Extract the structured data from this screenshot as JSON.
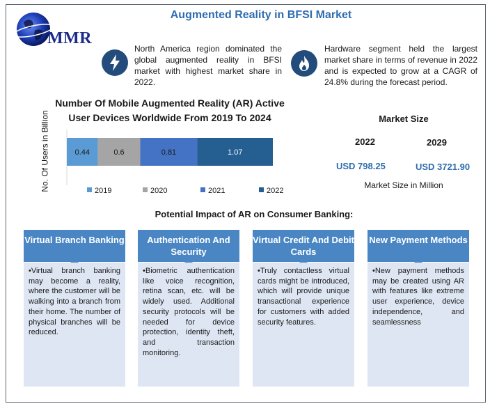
{
  "logo": {
    "text": "MMR",
    "icon": "globe-icon"
  },
  "title": "Augmented Reality in BFSI Market",
  "highlights": [
    {
      "icon": "lightning-icon",
      "text": "North America region dominated the global augmented reality in BFSI market with highest market share in 2022."
    },
    {
      "icon": "flame-icon",
      "text": "Hardware segment held the largest market share in terms of revenue in 2022 and is expected to grow at a CAGR of 24.8% during the forecast period."
    }
  ],
  "chart_data": {
    "type": "bar",
    "orientation": "horizontal-stacked",
    "title": "Number Of Mobile Augmented Reality (AR) Active User Devices Worldwide From 2019 To 2024",
    "ylabel": "No. Of Users in Billion",
    "xlabel": "",
    "series": [
      {
        "name": "2019",
        "values": [
          0.44
        ],
        "label": "0.44",
        "color": "#5b9bd5"
      },
      {
        "name": "2020",
        "values": [
          0.6
        ],
        "label": "0.6",
        "color": "#a5a5a5"
      },
      {
        "name": "2021",
        "values": [
          0.81
        ],
        "label": "0.81",
        "color": "#4472c4"
      },
      {
        "name": "2022",
        "values": [
          1.07
        ],
        "label": "1.07",
        "color": "#255e91"
      }
    ],
    "legend_position": "bottom",
    "grid": false
  },
  "market_size": {
    "title": "Market Size",
    "year1": "2022",
    "year2": "2029",
    "value1": "USD 798.25",
    "value2": "USD 3721.90",
    "caption": "Market Size in Million"
  },
  "impact": {
    "title": "Potential Impact of AR on Consumer Banking:",
    "cards": [
      {
        "heading": "Virtual Branch Banking",
        "body": "•Virtual branch banking may become a reality, where the customer will be walking into a branch from their home. The number of physical branches will be reduced."
      },
      {
        "heading": "Authentication And Security",
        "body": "•Biometric authentication like voice recognition, retina scan, etc. will be widely used. Additional security protocols will be needed for device protection, identity theft, and transaction monitoring."
      },
      {
        "heading": "Virtual Credit And Debit Cards",
        "body": "•Truly contactless virtual cards might be introduced, which will provide unique transactional experience for customers with added security features."
      },
      {
        "heading": "New Payment Methods",
        "body": "•New payment methods may be created using AR with features like extreme user experience, device independence, and seamlessness"
      }
    ]
  },
  "colors": {
    "title_blue": "#2e6db1",
    "card_head": "#4a86c4",
    "card_body": "#dde6f2",
    "icon_circle": "#234c7c"
  }
}
